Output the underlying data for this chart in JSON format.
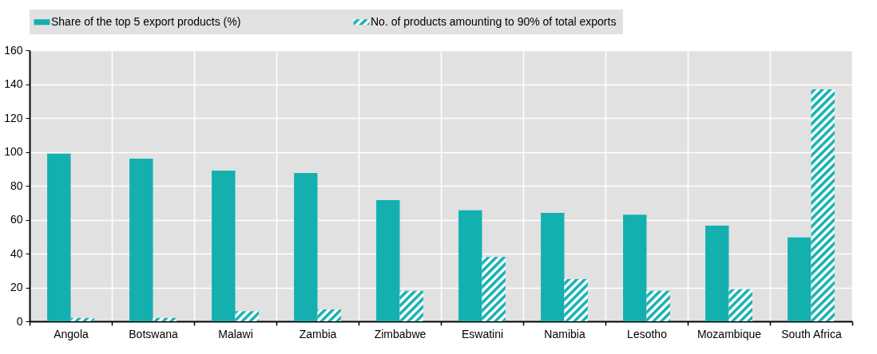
{
  "chart_data": {
    "type": "bar",
    "categories": [
      "Angola",
      "Botswana",
      "Malawi",
      "Zambia",
      "Zimbabwe",
      "Eswatini",
      "Namibia",
      "Lesotho",
      "Mozambique",
      "South Africa"
    ],
    "series": [
      {
        "name": "Share of the top 5 export products (%)",
        "color": "#14b0b0",
        "values": [
          99,
          96,
          89,
          87.5,
          71.5,
          65.5,
          64,
          63,
          56.5,
          49.5
        ]
      },
      {
        "name": "No. of products amounting to 90% of total exports",
        "color": "#14b0b0",
        "values": [
          2,
          2,
          6,
          7,
          18,
          38,
          25,
          18,
          19,
          137
        ]
      }
    ],
    "ylim": [
      0,
      160
    ],
    "yticks": [
      0,
      20,
      40,
      60,
      80,
      100,
      120,
      140,
      160
    ],
    "grid": true,
    "legend": "top"
  }
}
